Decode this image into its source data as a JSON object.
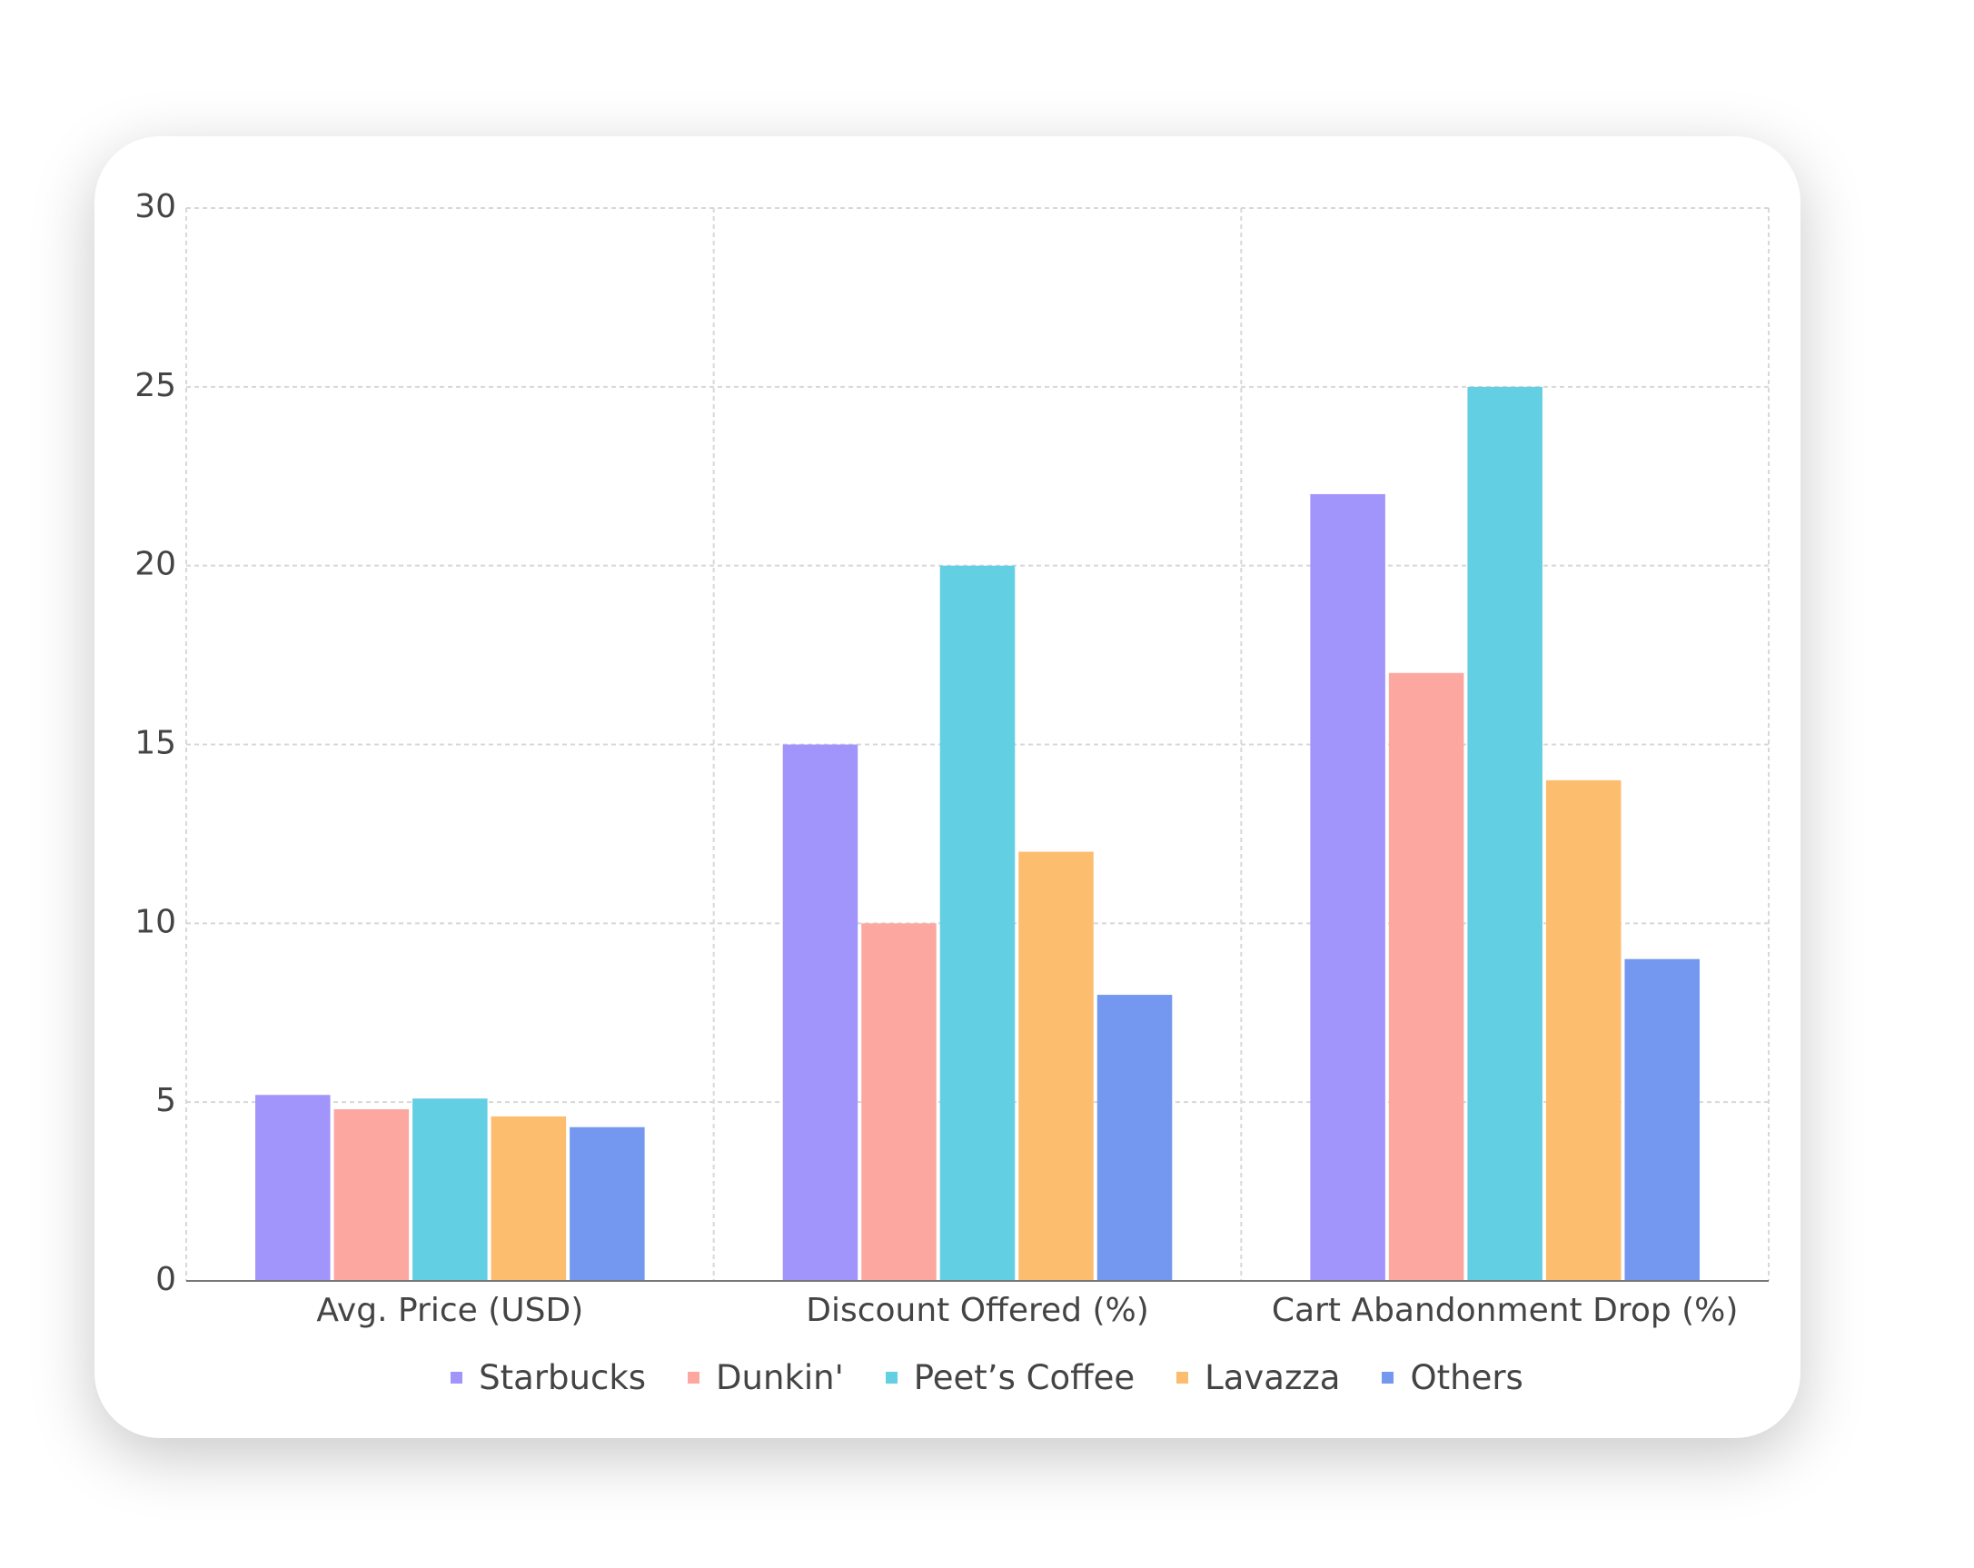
{
  "chart_data": {
    "type": "bar",
    "categories": [
      "Avg. Price (USD)",
      "Discount Offered (%)",
      "Cart Abandonment Drop (%)"
    ],
    "series": [
      {
        "name": "Starbucks",
        "color": "#a194fb",
        "values": [
          5.2,
          15,
          22
        ]
      },
      {
        "name": "Dunkin'",
        "color": "#fca8a0",
        "values": [
          4.8,
          10,
          17
        ]
      },
      {
        "name": "Peet’s Coffee",
        "color": "#62cfe2",
        "values": [
          5.1,
          20,
          25
        ]
      },
      {
        "name": "Lavazza",
        "color": "#fdbd6e",
        "values": [
          4.6,
          12,
          14
        ]
      },
      {
        "name": "Others",
        "color": "#7498ef",
        "values": [
          4.3,
          8,
          9
        ]
      }
    ],
    "ylim": [
      0,
      30
    ],
    "yticks": [
      0,
      5,
      10,
      15,
      20,
      25,
      30
    ],
    "grid": true,
    "legend": "bottom"
  }
}
